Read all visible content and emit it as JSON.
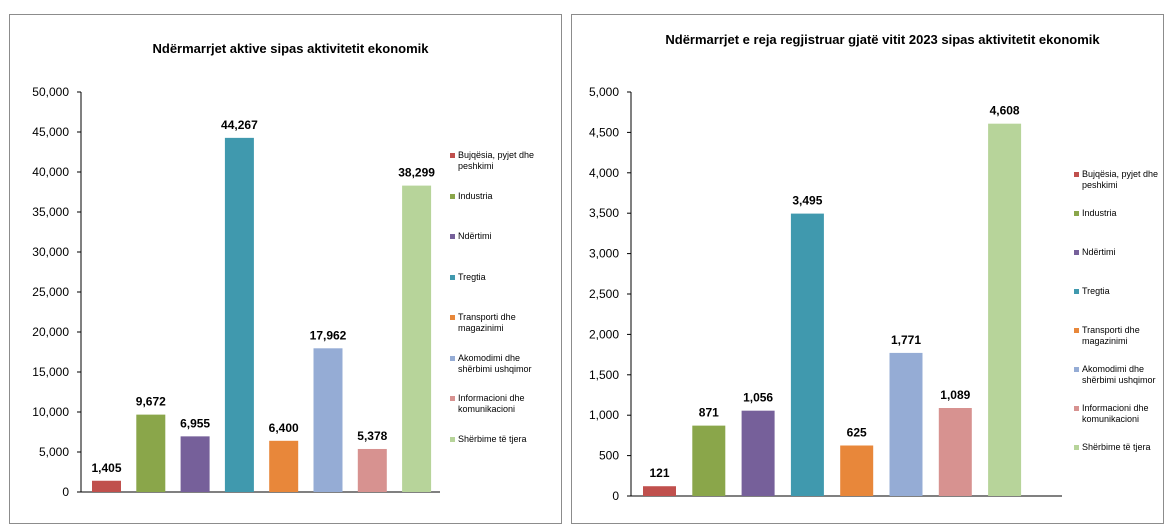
{
  "chart_data": [
    {
      "type": "bar",
      "title": "Ndërmarrjet aktive sipas aktivitetit ekonomik",
      "categories": [
        "Bujqësia, pyjet dhe peshkimi",
        "Industria",
        "Ndërtimi",
        "Tregtia",
        "Transporti dhe magazinimi",
        "Akomodimi dhe shërbimi ushqimor",
        "Informacioni dhe komunikacioni",
        "Shërbime të tjera"
      ],
      "values": [
        1405,
        9672,
        6955,
        44267,
        6400,
        17962,
        5378,
        38299
      ],
      "data_labels": [
        "1,405",
        "9,672",
        "6,955",
        "44,267",
        "6,400",
        "17,962",
        "5,378",
        "38,299"
      ],
      "ylim": [
        0,
        50000
      ],
      "y_ticks": [
        "0",
        "5,000",
        "10,000",
        "15,000",
        "20,000",
        "25,000",
        "30,000",
        "35,000",
        "40,000",
        "45,000",
        "50,000"
      ],
      "colors": [
        "#c0504d",
        "#8aa64a",
        "#76609a",
        "#4099ae",
        "#e8873a",
        "#95acd5",
        "#d79290",
        "#b7d49a"
      ],
      "legend_position": "right",
      "grid": false
    },
    {
      "type": "bar",
      "title": "Ndërmarrjet e reja regjistruar gjatë vitit 2023 sipas aktivitetit ekonomik",
      "categories": [
        "Bujqësia, pyjet dhe peshkimi",
        "Industria",
        "Ndërtimi",
        "Tregtia",
        "Transporti dhe magazinimi",
        "Akomodimi dhe shërbimi ushqimor",
        "Informacioni dhe komunikacioni",
        "Shërbime të tjera"
      ],
      "values": [
        121,
        871,
        1056,
        3495,
        625,
        1771,
        1089,
        4608
      ],
      "data_labels": [
        "121",
        "871",
        "1,056",
        "3,495",
        "625",
        "1,771",
        "1,089",
        "4,608"
      ],
      "ylim": [
        0,
        5000
      ],
      "y_ticks": [
        "0",
        "500",
        "1,000",
        "1,500",
        "2,000",
        "2,500",
        "3,000",
        "3,500",
        "4,000",
        "4,500",
        "5,000"
      ],
      "colors": [
        "#c0504d",
        "#8aa64a",
        "#76609a",
        "#4099ae",
        "#e8873a",
        "#95acd5",
        "#d79290",
        "#b7d49a"
      ],
      "legend_position": "right",
      "grid": false
    }
  ],
  "legend_entries": [
    [
      "Bujqësia, pyjet dhe",
      "peshkimi"
    ],
    [
      "Industria"
    ],
    [
      "Ndërtimi"
    ],
    [
      "Tregtia"
    ],
    [
      "Transporti dhe",
      "magazinimi"
    ],
    [
      "Akomodimi dhe",
      "shërbimi ushqimor"
    ],
    [
      "Informacioni dhe",
      "komunikacioni"
    ],
    [
      "Shërbime të tjera"
    ]
  ]
}
